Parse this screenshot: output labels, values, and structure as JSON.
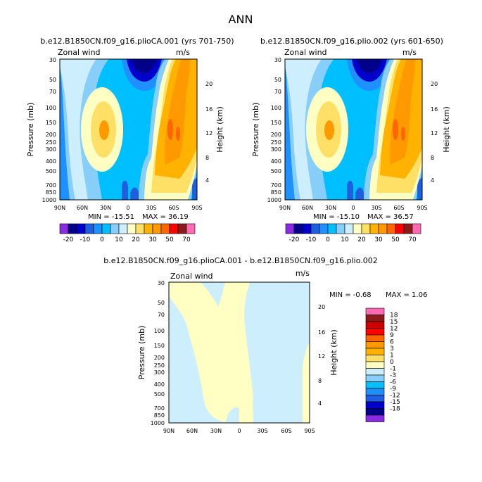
{
  "page_title": "ANN",
  "colors": {
    "purple": "#8a2be2",
    "navy": "#00008b",
    "darkblue": "#0000cd",
    "blue": "#1e5fe0",
    "medblue": "#1e90ff",
    "skyblue": "#00bfff",
    "lightblue": "#87cefa",
    "paleblue": "#cdeefd",
    "paleyellow": "#ffffc4",
    "yellow": "#ffe066",
    "gold": "#ffb300",
    "orange": "#ff9900",
    "darkorange": "#ff6600",
    "red": "#ff0000",
    "darkred": "#cc0000",
    "maroon": "#8b1a1a",
    "pink": "#ff69b4"
  },
  "chart_data": [
    {
      "type": "contour",
      "title": "b.e12.B1850CN.f09_g16.plioCA.001 (yrs 701-750)",
      "variable": "Zonal wind",
      "units": "m/s",
      "ylabel": "Pressure (mb)",
      "y2label": "Height (km)",
      "xticks": [
        "90N",
        "60N",
        "30N",
        "0",
        "30S",
        "60S",
        "90S"
      ],
      "yticks": [
        "30",
        "50",
        "70",
        "100",
        "150",
        "200",
        "250",
        "300",
        "400",
        "500",
        "700",
        "850",
        "1000"
      ],
      "y2ticks": [
        "20",
        "16",
        "12",
        "8",
        "4"
      ],
      "min_label": "MIN = -15.51",
      "max_label": "MAX =  36.19",
      "min": -15.51,
      "max": 36.19
    },
    {
      "type": "contour",
      "title": "b.e12.B1850CN.f09_g16.plio.002 (yrs 601-650)",
      "variable": "Zonal wind",
      "units": "m/s",
      "ylabel": "Pressure (mb)",
      "y2label": "Height (km)",
      "xticks": [
        "90N",
        "60N",
        "30N",
        "0",
        "30S",
        "60S",
        "90S"
      ],
      "yticks": [
        "30",
        "50",
        "70",
        "100",
        "150",
        "200",
        "250",
        "300",
        "400",
        "500",
        "700",
        "850",
        "1000"
      ],
      "y2ticks": [
        "20",
        "16",
        "12",
        "8",
        "4"
      ],
      "min_label": "MIN = -15.10",
      "max_label": "MAX =  36.57",
      "min": -15.1,
      "max": 36.57
    },
    {
      "type": "contour",
      "title": "b.e12.B1850CN.f09_g16.plioCA.001 - b.e12.B1850CN.f09_g16.plio.002",
      "variable": "Zonal wind",
      "units": "m/s",
      "ylabel": "Pressure (mb)",
      "y2label": "Height (km)",
      "xticks": [
        "90N",
        "60N",
        "30N",
        "0",
        "30S",
        "60S",
        "90S"
      ],
      "yticks": [
        "30",
        "50",
        "70",
        "100",
        "150",
        "200",
        "250",
        "300",
        "400",
        "500",
        "700",
        "850",
        "1000"
      ],
      "y2ticks": [
        "20",
        "16",
        "12",
        "8",
        "4"
      ],
      "min_label": "MIN =  -0.68",
      "max_label": "MAX =   1.06",
      "min": -0.68,
      "max": 1.06
    }
  ],
  "colorbar_top": {
    "labels": [
      "-20",
      "-10",
      "0",
      "10",
      "20",
      "30",
      "50",
      "70"
    ],
    "levels": [
      -20,
      -15,
      -10,
      -5,
      0,
      5,
      10,
      15,
      20,
      25,
      30,
      40,
      50,
      60,
      70
    ],
    "colors": [
      "#8a2be2",
      "#00008b",
      "#0000cd",
      "#1e5fe0",
      "#1e90ff",
      "#00bfff",
      "#87cefa",
      "#cdeefd",
      "#ffffc4",
      "#ffe066",
      "#ffb300",
      "#ff9900",
      "#ff6600",
      "#ff0000",
      "#8b1a1a",
      "#ff69b4"
    ]
  },
  "colorbar_diff": {
    "labels": [
      "18",
      "15",
      "12",
      "9",
      "6",
      "3",
      "1",
      "0",
      "-1",
      "-3",
      "-6",
      "-9",
      "-12",
      "-15",
      "-18"
    ],
    "colors": [
      "#ff69b4",
      "#8b1a1a",
      "#cc0000",
      "#ff0000",
      "#ff6600",
      "#ff9900",
      "#ffb300",
      "#ffe066",
      "#ffffc4",
      "#cdeefd",
      "#87cefa",
      "#00bfff",
      "#1e90ff",
      "#1e5fe0",
      "#0000cd",
      "#00008b",
      "#8a2be2"
    ]
  }
}
